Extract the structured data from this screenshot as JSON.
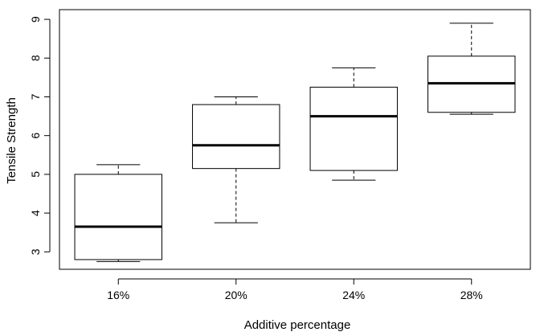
{
  "chart_data": {
    "type": "boxplot",
    "title": "",
    "xlabel": "Additive percentage",
    "ylabel": "Tensile Strength",
    "categories": [
      "16%",
      "20%",
      "24%",
      "28%"
    ],
    "boxes": [
      {
        "min": 2.75,
        "q1": 2.8,
        "median": 3.65,
        "q3": 5.0,
        "max": 5.25
      },
      {
        "min": 3.75,
        "q1": 5.15,
        "median": 5.75,
        "q3": 6.8,
        "max": 7.0
      },
      {
        "min": 4.85,
        "q1": 5.1,
        "median": 6.5,
        "q3": 7.25,
        "max": 7.75
      },
      {
        "min": 6.55,
        "q1": 6.6,
        "median": 7.35,
        "q3": 8.05,
        "max": 8.9
      }
    ],
    "y_ticks": [
      3,
      4,
      5,
      6,
      7,
      8,
      9
    ],
    "ylim": [
      2.55,
      9.25
    ],
    "grid": false,
    "legend": "none"
  }
}
